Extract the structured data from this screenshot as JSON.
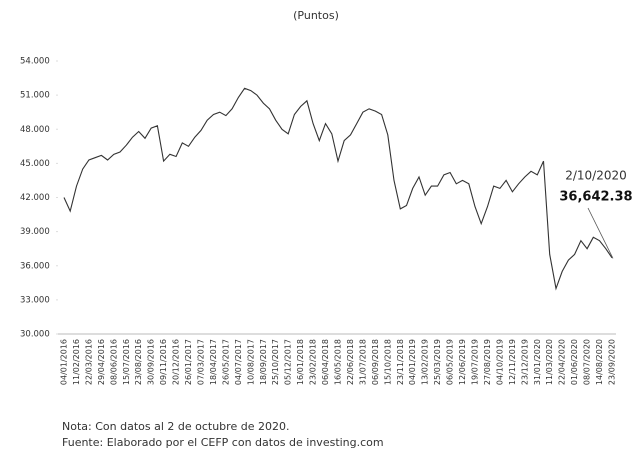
{
  "chart_data": {
    "type": "line",
    "title": "(Puntos)",
    "categories": [
      "04/01/2016",
      null,
      "11/02/2016",
      null,
      "22/03/2016",
      null,
      "29/04/2016",
      null,
      "08/06/2016",
      null,
      "15/07/2016",
      null,
      "23/08/2016",
      null,
      "30/09/2016",
      null,
      "09/11/2016",
      null,
      "20/12/2016",
      null,
      "26/01/2017",
      null,
      "07/03/2017",
      null,
      "18/04/2017",
      null,
      "26/05/2017",
      null,
      "04/07/2017",
      null,
      "10/08/2017",
      null,
      "18/09/2017",
      null,
      "25/10/2017",
      null,
      "05/12/2017",
      null,
      "16/01/2018",
      null,
      "23/02/2018",
      null,
      "06/04/2018",
      null,
      "16/05/2018",
      null,
      "22/06/2018",
      null,
      "31/07/2018",
      null,
      "06/09/2018",
      null,
      "15/10/2018",
      null,
      "23/11/2018",
      null,
      "04/01/2019",
      null,
      "13/02/2019",
      null,
      "25/03/2019",
      null,
      "06/05/2019",
      null,
      "12/06/2019",
      null,
      "19/07/2019",
      null,
      "27/08/2019",
      null,
      "04/10/2019",
      null,
      "12/11/2019",
      null,
      "23/12/2019",
      null,
      "31/01/2020",
      null,
      "11/03/2020",
      null,
      "22/04/2020",
      null,
      "01/06/2020",
      null,
      "08/07/2020",
      null,
      "14/08/2020",
      null,
      "23/09/2020"
    ],
    "values": [
      42000,
      40800,
      43000,
      44500,
      45300,
      45500,
      45700,
      45300,
      45800,
      46000,
      46600,
      47300,
      47800,
      47200,
      48100,
      48300,
      45200,
      45800,
      45600,
      46800,
      46500,
      47300,
      47900,
      48800,
      49300,
      49500,
      49200,
      49800,
      50800,
      51600,
      51400,
      51000,
      50300,
      49800,
      48800,
      48000,
      47600,
      49300,
      50000,
      50500,
      48500,
      47000,
      48500,
      47600,
      45200,
      47000,
      47500,
      48500,
      49500,
      49800,
      49600,
      49300,
      47500,
      43500,
      41000,
      41300,
      42800,
      43800,
      42200,
      43000,
      43000,
      44000,
      44200,
      43200,
      43500,
      43200,
      41200,
      39700,
      41200,
      43000,
      42800,
      43500,
      42500,
      43200,
      43800,
      44300,
      44000,
      45200,
      37000,
      34000,
      35500,
      36500,
      37000,
      38200,
      37500,
      38500,
      38200,
      37500,
      36700
    ],
    "color": "#333333",
    "ylim": [
      30000,
      54000
    ],
    "yticks": [
      {
        "value": 30000,
        "label": "30.000"
      },
      {
        "value": 33000,
        "label": "33.000"
      },
      {
        "value": 36000,
        "label": "36.000"
      },
      {
        "value": 39000,
        "label": "39.000"
      },
      {
        "value": 42000,
        "label": "42.000"
      },
      {
        "value": 45000,
        "label": "45.000"
      },
      {
        "value": 48000,
        "label": "48.000"
      },
      {
        "value": 51000,
        "label": "51.000"
      },
      {
        "value": 54000,
        "label": "54.000"
      }
    ],
    "grid": false,
    "annotation": {
      "text": "2/10/2020",
      "value": 36642.38,
      "value_label": "36,642.38"
    },
    "notes": [
      "Nota: Con datos al 2 de octubre de 2020.",
      "Fuente: Elaborado por el CEFP con datos de investing.com"
    ]
  }
}
